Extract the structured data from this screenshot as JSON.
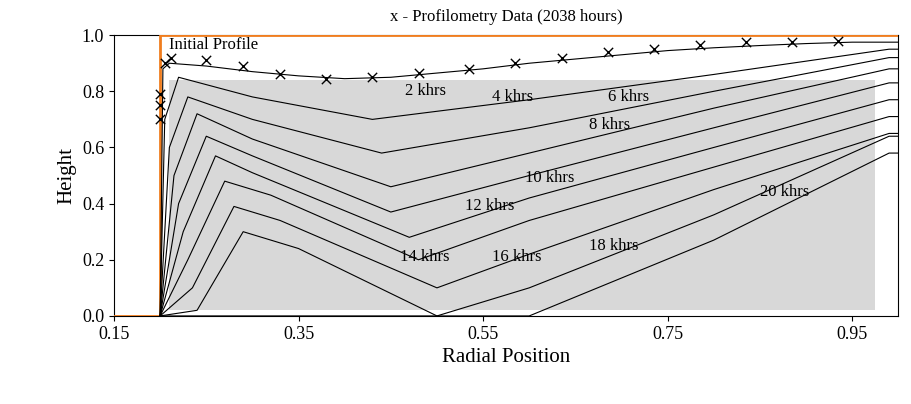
{
  "chart_data": {
    "type": "line",
    "title": "x - Profilometry Data (2038 hours)",
    "x_label": "Radial Position",
    "y_label": "Height",
    "xlim": [
      0.15,
      1.0
    ],
    "ylim": [
      0.0,
      1.0
    ],
    "xticks": [
      {
        "value": 0.15,
        "label": "0.15"
      },
      {
        "value": 0.35,
        "label": "0.35"
      },
      {
        "value": 0.55,
        "label": "0.55"
      },
      {
        "value": 0.75,
        "label": "0.75"
      },
      {
        "value": 0.95,
        "label": "0.95"
      }
    ],
    "yticks": [
      {
        "value": 0.0,
        "label": "0.0"
      },
      {
        "value": 0.2,
        "label": "0.2"
      },
      {
        "value": 0.4,
        "label": "0.4"
      },
      {
        "value": 0.6,
        "label": "0.6"
      },
      {
        "value": 0.8,
        "label": "0.8"
      },
      {
        "value": 1.0,
        "label": "1.0"
      }
    ],
    "grid": false,
    "series": [
      {
        "name": "Initial Profile",
        "type": "line",
        "color": "#f07d1e",
        "line_style": "solid",
        "x": [
          0.15,
          0.2,
          0.2,
          1.0
        ],
        "values": [
          0.0,
          0.0,
          1.0,
          1.0
        ]
      },
      {
        "name": "2 khrs",
        "type": "line",
        "color": "#000000",
        "line_style": "solid",
        "x": [
          0.2,
          0.203,
          0.21,
          0.25,
          0.3,
          0.35,
          0.4,
          0.45,
          0.5,
          0.55,
          0.6,
          0.65,
          0.7,
          0.75,
          0.8,
          0.85,
          0.9,
          0.95,
          1.0
        ],
        "values": [
          0.0,
          0.88,
          0.9,
          0.89,
          0.87,
          0.855,
          0.845,
          0.85,
          0.865,
          0.88,
          0.9,
          0.915,
          0.93,
          0.945,
          0.955,
          0.963,
          0.97,
          0.975,
          0.975
        ]
      },
      {
        "name": "4 khrs",
        "type": "line",
        "color": "#000000",
        "line_style": "solid",
        "x": [
          0.2,
          0.205,
          0.22,
          0.3,
          0.43,
          0.6,
          0.8,
          0.99,
          1.0
        ],
        "values": [
          0.0,
          0.7,
          0.85,
          0.78,
          0.7,
          0.77,
          0.86,
          0.95,
          0.95
        ]
      },
      {
        "name": "6 khrs",
        "type": "line",
        "color": "#000000",
        "line_style": "solid",
        "x": [
          0.2,
          0.21,
          0.23,
          0.3,
          0.44,
          0.6,
          0.8,
          0.99,
          1.0
        ],
        "values": [
          0.0,
          0.6,
          0.78,
          0.7,
          0.58,
          0.67,
          0.8,
          0.92,
          0.92
        ]
      },
      {
        "name": "8 khrs",
        "type": "line",
        "color": "#000000",
        "line_style": "solid",
        "x": [
          0.2,
          0.215,
          0.24,
          0.3,
          0.45,
          0.6,
          0.8,
          0.99,
          1.0
        ],
        "values": [
          0.0,
          0.5,
          0.72,
          0.63,
          0.46,
          0.58,
          0.74,
          0.88,
          0.88
        ]
      },
      {
        "name": "10 khrs",
        "type": "line",
        "color": "#000000",
        "line_style": "solid",
        "x": [
          0.2,
          0.22,
          0.25,
          0.3,
          0.45,
          0.6,
          0.8,
          0.99,
          1.0
        ],
        "values": [
          0.0,
          0.4,
          0.64,
          0.57,
          0.37,
          0.5,
          0.67,
          0.83,
          0.83
        ]
      },
      {
        "name": "12 khrs",
        "type": "line",
        "color": "#000000",
        "line_style": "solid",
        "x": [
          0.2,
          0.225,
          0.26,
          0.3,
          0.47,
          0.6,
          0.8,
          0.99,
          1.0
        ],
        "values": [
          0.0,
          0.3,
          0.57,
          0.51,
          0.28,
          0.42,
          0.6,
          0.77,
          0.77
        ]
      },
      {
        "name": "14 khrs",
        "type": "line",
        "color": "#000000",
        "line_style": "solid",
        "x": [
          0.2,
          0.23,
          0.27,
          0.32,
          0.48,
          0.6,
          0.8,
          0.99,
          1.0
        ],
        "values": [
          0.0,
          0.2,
          0.48,
          0.43,
          0.2,
          0.34,
          0.53,
          0.71,
          0.71
        ]
      },
      {
        "name": "16 khrs",
        "type": "line",
        "color": "#000000",
        "line_style": "solid",
        "x": [
          0.2,
          0.235,
          0.28,
          0.33,
          0.5,
          0.6,
          0.8,
          0.99,
          1.0
        ],
        "values": [
          0.0,
          0.1,
          0.39,
          0.34,
          0.1,
          0.22,
          0.45,
          0.65,
          0.65
        ]
      },
      {
        "name": "18 khrs",
        "type": "line",
        "color": "#000000",
        "line_style": "solid",
        "x": [
          0.2,
          0.24,
          0.29,
          0.35,
          0.5,
          0.6,
          0.8,
          0.99,
          1.0
        ],
        "values": [
          0.0,
          0.02,
          0.3,
          0.24,
          0.0,
          0.1,
          0.36,
          0.64,
          0.64
        ]
      },
      {
        "name": "20 khrs",
        "type": "line",
        "color": "#000000",
        "line_style": "solid",
        "x": [
          0.2,
          0.6,
          0.8,
          0.99,
          1.0
        ],
        "values": [
          0.0,
          0.0,
          0.27,
          0.58,
          0.58
        ]
      },
      {
        "name": "Profilometry Data",
        "type": "scatter",
        "color": "#000000",
        "marker": "x",
        "x": [
          0.2,
          0.2,
          0.2,
          0.205,
          0.212,
          0.25,
          0.29,
          0.33,
          0.38,
          0.43,
          0.48,
          0.535,
          0.585,
          0.635,
          0.685,
          0.735,
          0.785,
          0.835,
          0.885,
          0.935
        ],
        "values": [
          0.7,
          0.75,
          0.79,
          0.9,
          0.92,
          0.91,
          0.89,
          0.86,
          0.845,
          0.85,
          0.865,
          0.88,
          0.9,
          0.92,
          0.94,
          0.95,
          0.965,
          0.975,
          0.975,
          0.98
        ]
      }
    ],
    "annotations": [
      {
        "text": "Initial Profile",
        "x": 0.21,
        "y": 0.965
      },
      {
        "text": "2 khrs",
        "x": 0.465,
        "y": 0.8
      },
      {
        "text": "4 khrs",
        "x": 0.56,
        "y": 0.78
      },
      {
        "text": "6 khrs",
        "x": 0.685,
        "y": 0.78
      },
      {
        "text": "8 khrs",
        "x": 0.665,
        "y": 0.68
      },
      {
        "text": "10 khrs",
        "x": 0.595,
        "y": 0.49
      },
      {
        "text": "12 khrs",
        "x": 0.53,
        "y": 0.39
      },
      {
        "text": "14 khrs",
        "x": 0.46,
        "y": 0.21
      },
      {
        "text": "16 khrs",
        "x": 0.56,
        "y": 0.21
      },
      {
        "text": "18 khrs",
        "x": 0.665,
        "y": 0.25
      },
      {
        "text": "20 khrs",
        "x": 0.85,
        "y": 0.44
      }
    ]
  }
}
